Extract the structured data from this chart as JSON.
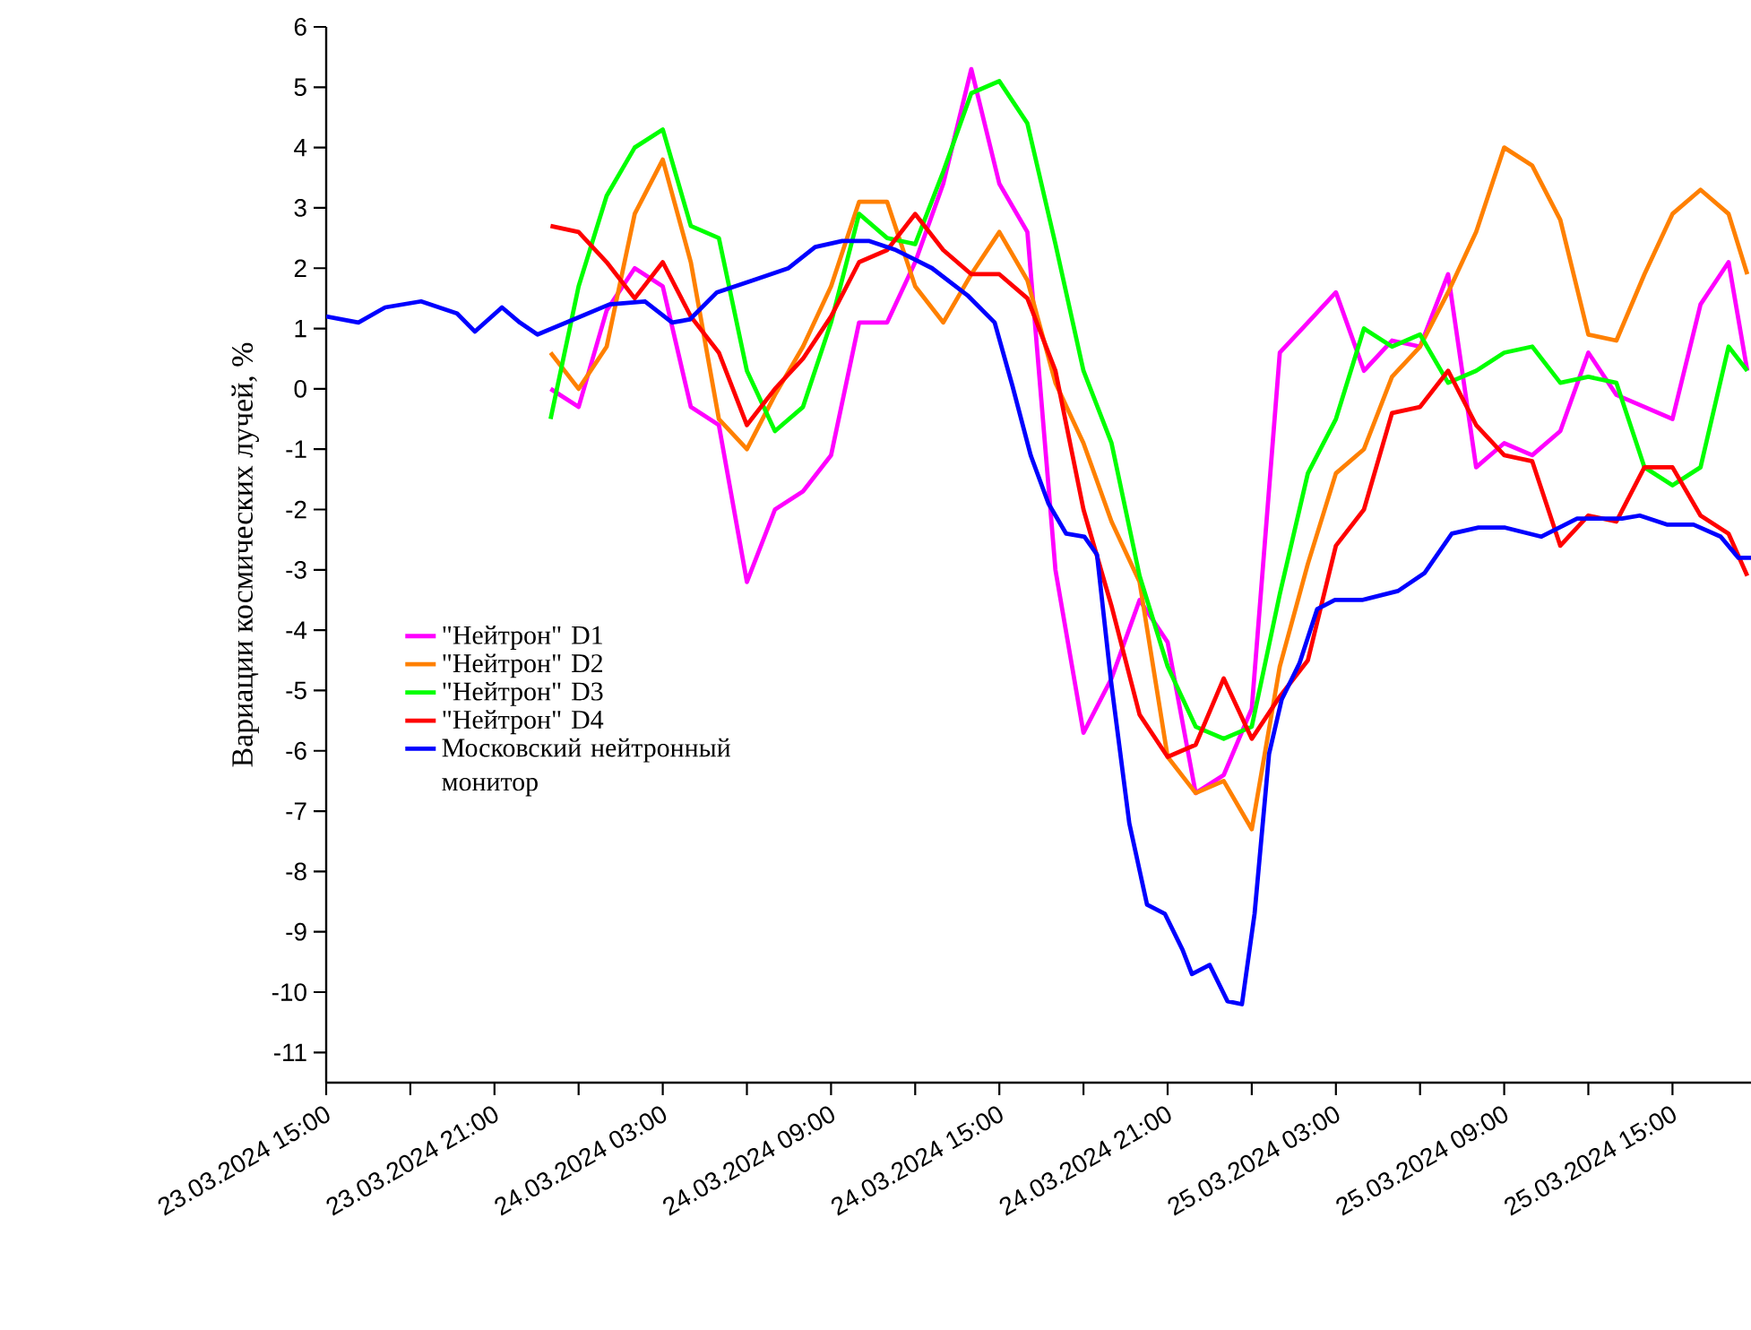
{
  "chart_data": {
    "type": "line",
    "ylabel": "Вариации космических лучей, %",
    "x": [
      "2024-03-23T23:00",
      "2024-03-24T00:00",
      "2024-03-24T01:00",
      "2024-03-24T02:00",
      "2024-03-24T03:00",
      "2024-03-24T04:00",
      "2024-03-24T05:00",
      "2024-03-24T06:00",
      "2024-03-24T07:00",
      "2024-03-24T08:00",
      "2024-03-24T09:00",
      "2024-03-24T10:00",
      "2024-03-24T11:00",
      "2024-03-24T12:00",
      "2024-03-24T13:00",
      "2024-03-24T14:00",
      "2024-03-24T15:00",
      "2024-03-24T16:00",
      "2024-03-24T17:00",
      "2024-03-24T18:00",
      "2024-03-24T19:00",
      "2024-03-24T20:00",
      "2024-03-24T21:00",
      "2024-03-24T22:00",
      "2024-03-24T23:00",
      "2024-03-25T00:00",
      "2024-03-25T01:00",
      "2024-03-25T02:00",
      "2024-03-25T03:00",
      "2024-03-25T04:00",
      "2024-03-25T05:00",
      "2024-03-25T06:00",
      "2024-03-25T07:00",
      "2024-03-25T08:00",
      "2024-03-25T09:00",
      "2024-03-25T10:00",
      "2024-03-25T11:00",
      "2024-03-25T12:00",
      "2024-03-25T13:00",
      "2024-03-25T14:00",
      "2024-03-25T15:00",
      "2024-03-25T16:00",
      "2024-03-25T17:00",
      "2024-03-25T17:40"
    ],
    "series": [
      {
        "name": "\"Нейтрон\" D1",
        "color": "#ff00ff",
        "values": [
          0.0,
          -0.3,
          1.3,
          2.0,
          1.7,
          -0.3,
          -0.6,
          -3.2,
          -2.0,
          -1.7,
          -1.1,
          1.1,
          1.1,
          2.1,
          3.4,
          5.3,
          3.4,
          2.6,
          -3.0,
          -5.7,
          -4.8,
          -3.5,
          -4.2,
          -6.7,
          -6.4,
          -5.3,
          0.6,
          1.1,
          1.6,
          0.3,
          0.8,
          0.7,
          1.9,
          -1.3,
          -0.9,
          -1.1,
          -0.7,
          0.6,
          -0.1,
          -0.3,
          -0.5,
          1.4,
          2.1,
          0.3
        ]
      },
      {
        "name": "\"Нейтрон\" D2",
        "color": "#ff8000",
        "values": [
          0.6,
          0.0,
          0.7,
          2.9,
          3.8,
          2.1,
          -0.5,
          -1.0,
          -0.1,
          0.7,
          1.7,
          3.1,
          3.1,
          1.7,
          1.1,
          1.9,
          2.6,
          1.8,
          0.1,
          -0.9,
          -2.2,
          -3.2,
          -6.1,
          -6.7,
          -6.5,
          -7.3,
          -4.6,
          -2.9,
          -1.4,
          -1.0,
          0.2,
          0.7,
          1.6,
          2.6,
          4.0,
          3.7,
          2.8,
          0.9,
          0.8,
          1.9,
          2.9,
          3.3,
          2.9,
          1.9
        ]
      },
      {
        "name": "\"Нейтрон\" D3",
        "color": "#00ff00",
        "values": [
          -0.5,
          1.7,
          3.2,
          4.0,
          4.3,
          2.7,
          2.5,
          0.3,
          -0.7,
          -0.3,
          1.1,
          2.9,
          2.5,
          2.4,
          3.6,
          4.9,
          5.1,
          4.4,
          2.4,
          0.3,
          -0.9,
          -3.1,
          -4.6,
          -5.6,
          -5.8,
          -5.6,
          -3.4,
          -1.4,
          -0.5,
          1.0,
          0.7,
          0.9,
          0.1,
          0.3,
          0.6,
          0.7,
          0.1,
          0.2,
          0.1,
          -1.3,
          -1.6,
          -1.3,
          0.7,
          0.3
        ]
      },
      {
        "name": "\"Нейтрон\" D4",
        "color": "#ff0000",
        "values": [
          2.7,
          2.6,
          2.1,
          1.5,
          2.1,
          1.2,
          0.6,
          -0.6,
          0.0,
          0.5,
          1.2,
          2.1,
          2.3,
          2.9,
          2.3,
          1.9,
          1.9,
          1.5,
          0.3,
          -2.0,
          -3.6,
          -5.4,
          -6.1,
          -5.9,
          -4.8,
          -5.8,
          -5.1,
          -4.5,
          -2.6,
          -2.0,
          -0.4,
          -0.3,
          0.3,
          -0.6,
          -1.1,
          -1.2,
          -2.6,
          -2.1,
          -2.2,
          -1.3,
          -1.3,
          -2.1,
          -2.4,
          -3.1
        ]
      },
      {
        "name": "Московский нейтронный монитор",
        "color": "#0000ff",
        "x": [
          "2024-03-23T15:00",
          "2024-03-23T16:09",
          "2024-03-23T17:06",
          "2024-03-23T18:23",
          "2024-03-23T19:40",
          "2024-03-23T20:18",
          "2024-03-23T21:16",
          "2024-03-23T21:54",
          "2024-03-23T22:32",
          "2024-03-23T23:49",
          "2024-03-24T01:06",
          "2024-03-24T02:22",
          "2024-03-24T03:20",
          "2024-03-24T03:58",
          "2024-03-24T04:56",
          "2024-03-24T06:13",
          "2024-03-24T07:29",
          "2024-03-24T08:26",
          "2024-03-24T09:24",
          "2024-03-24T10:22",
          "2024-03-24T11:19",
          "2024-03-24T12:36",
          "2024-03-24T13:52",
          "2024-03-24T14:50",
          "2024-03-24T15:28",
          "2024-03-24T16:07",
          "2024-03-24T16:45",
          "2024-03-24T17:23",
          "2024-03-24T18:02",
          "2024-03-24T18:29",
          "2024-03-24T18:59",
          "2024-03-24T19:38",
          "2024-03-24T20:16",
          "2024-03-24T20:54",
          "2024-03-24T21:32",
          "2024-03-24T21:52",
          "2024-03-24T22:30",
          "2024-03-24T23:08",
          "2024-03-24T23:39",
          "2024-03-25T00:06",
          "2024-03-25T00:37",
          "2024-03-25T01:04",
          "2024-03-25T01:42",
          "2024-03-25T02:20",
          "2024-03-25T02:58",
          "2024-03-25T03:56",
          "2024-03-25T05:13",
          "2024-03-25T06:10",
          "2024-03-25T07:08",
          "2024-03-25T08:05",
          "2024-03-25T09:02",
          "2024-03-25T10:19",
          "2024-03-25T11:36",
          "2024-03-25T13:12",
          "2024-03-25T13:50",
          "2024-03-25T14:48",
          "2024-03-25T15:45",
          "2024-03-25T16:43",
          "2024-03-25T17:21",
          "2024-03-25T17:48"
        ],
        "values": [
          1.2,
          1.1,
          1.35,
          1.45,
          1.25,
          0.95,
          1.35,
          1.1,
          0.9,
          1.15,
          1.4,
          1.45,
          1.1,
          1.15,
          1.6,
          1.8,
          2.0,
          2.35,
          2.45,
          2.45,
          2.3,
          2.0,
          1.55,
          1.1,
          0.05,
          -1.1,
          -1.9,
          -2.4,
          -2.45,
          -2.75,
          -4.85,
          -7.2,
          -8.55,
          -8.7,
          -9.3,
          -9.7,
          -9.55,
          -10.15,
          -10.2,
          -8.7,
          -6.05,
          -5.15,
          -4.55,
          -3.65,
          -3.5,
          -3.5,
          -3.35,
          -3.05,
          -2.4,
          -2.3,
          -2.3,
          -2.45,
          -2.15,
          -2.15,
          -2.1,
          -2.25,
          -2.25,
          -2.45,
          -2.8,
          -2.8
        ]
      }
    ],
    "xlim": [
      "2024-03-23T15:00",
      "2024-03-25T17:48"
    ],
    "xticks": [
      {
        "value": "2024-03-23T15:00",
        "label": "23.03.2024 15:00"
      },
      {
        "value": "2024-03-23T18:00",
        "label": null
      },
      {
        "value": "2024-03-23T21:00",
        "label": "23.03.2024 21:00"
      },
      {
        "value": "2024-03-24T00:00",
        "label": null
      },
      {
        "value": "2024-03-24T03:00",
        "label": "24.03.2024 03:00"
      },
      {
        "value": "2024-03-24T06:00",
        "label": null
      },
      {
        "value": "2024-03-24T09:00",
        "label": "24.03.2024 09:00"
      },
      {
        "value": "2024-03-24T12:00",
        "label": null
      },
      {
        "value": "2024-03-24T15:00",
        "label": "24.03.2024 15:00"
      },
      {
        "value": "2024-03-24T18:00",
        "label": null
      },
      {
        "value": "2024-03-24T21:00",
        "label": "24.03.2024 21:00"
      },
      {
        "value": "2024-03-25T00:00",
        "label": null
      },
      {
        "value": "2024-03-25T03:00",
        "label": "25.03.2024 03:00"
      },
      {
        "value": "2024-03-25T06:00",
        "label": null
      },
      {
        "value": "2024-03-25T09:00",
        "label": "25.03.2024 09:00"
      },
      {
        "value": "2024-03-25T12:00",
        "label": null
      },
      {
        "value": "2024-03-25T15:00",
        "label": "25.03.2024 15:00"
      }
    ],
    "ylim": [
      -11.5,
      6
    ],
    "yticks": [
      -11,
      -10,
      -9,
      -8,
      -7,
      -6,
      -5,
      -4,
      -3,
      -2,
      -1,
      0,
      1,
      2,
      3,
      4,
      5,
      6
    ],
    "legend": "left",
    "line_style": "solid"
  }
}
